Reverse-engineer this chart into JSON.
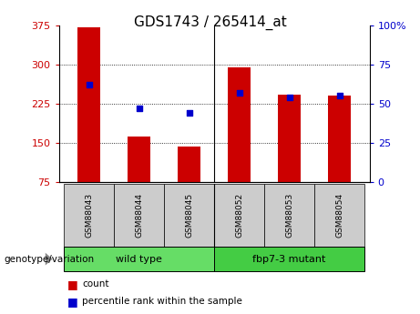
{
  "title": "GDS1743 / 265414_at",
  "samples": [
    "GSM88043",
    "GSM88044",
    "GSM88045",
    "GSM88052",
    "GSM88053",
    "GSM88054"
  ],
  "counts": [
    370,
    163,
    143,
    295,
    243,
    240
  ],
  "percentile_ranks": [
    62,
    47,
    44,
    57,
    54,
    55
  ],
  "ylim_left": [
    75,
    375
  ],
  "ylim_right": [
    0,
    100
  ],
  "yticks_left": [
    75,
    150,
    225,
    300,
    375
  ],
  "yticks_right": [
    0,
    25,
    50,
    75,
    100
  ],
  "ytick_labels_right": [
    "0",
    "25",
    "50",
    "75",
    "100%"
  ],
  "bar_color": "#cc0000",
  "dot_color": "#0000cc",
  "bar_width": 0.45,
  "groups": [
    {
      "label": "wild type",
      "color": "#66dd66"
    },
    {
      "label": "fbp7-3 mutant",
      "color": "#44cc44"
    }
  ],
  "group_label": "genotype/variation",
  "legend_count_label": "count",
  "legend_pct_label": "percentile rank within the sample",
  "background_color": "#ffffff",
  "tick_label_color_left": "#cc0000",
  "tick_label_color_right": "#0000cc",
  "sample_bg_color": "#cccccc",
  "title_fontsize": 11,
  "tick_fontsize": 8,
  "label_fontsize": 7
}
